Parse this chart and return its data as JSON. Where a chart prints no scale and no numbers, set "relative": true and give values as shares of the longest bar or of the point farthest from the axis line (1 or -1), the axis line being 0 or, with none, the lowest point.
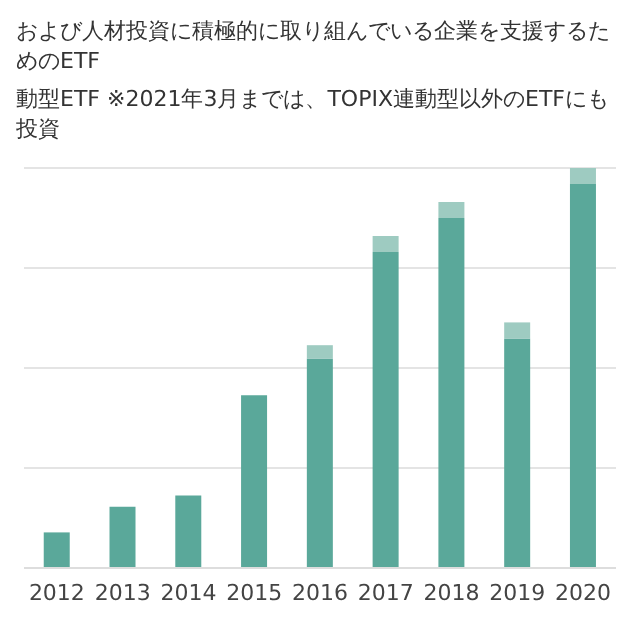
{
  "chart_data": {
    "type": "bar",
    "title": "および人材投資に積極的に取り組んでいる企業を支援するためのETF",
    "subtitle": "動型ETF ※2021年3月までは、TOPIX連動型以外のETFにも投資",
    "categories": [
      "2012",
      "2013",
      "2014",
      "2015",
      "2016",
      "2017",
      "2018",
      "2019",
      "2020"
    ],
    "relative": true,
    "stacked": true,
    "grid": "y",
    "series": [
      {
        "color": "#5aa89a",
        "values": [
          0.089,
          0.153,
          0.181,
          0.432,
          0.524,
          0.79,
          0.875,
          0.574,
          0.96
        ]
      },
      {
        "color": "#9ecbc1",
        "values": [
          null,
          null,
          null,
          null,
          0.033,
          0.04,
          0.04,
          0.04,
          0.04
        ]
      }
    ]
  }
}
